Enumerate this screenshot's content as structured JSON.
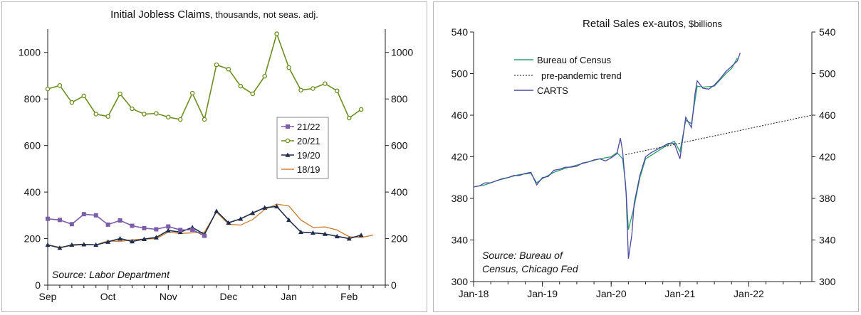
{
  "chart_data": [
    {
      "type": "line",
      "title": "Initial Jobless Claims",
      "subtitle": ", thousands, not seas. adj.",
      "source": "Source: Labor Department",
      "x_tick_labels": [
        "Sep",
        "Oct",
        "Nov",
        "Dec",
        "Jan",
        "Feb"
      ],
      "x_week_range": [
        0,
        28
      ],
      "x_tick_weeks": [
        0,
        5,
        10,
        15,
        20,
        25
      ],
      "ylim": [
        0,
        1100
      ],
      "y_ticks": [
        0,
        200,
        400,
        600,
        800,
        1000
      ],
      "legend_position": "right",
      "series": [
        {
          "name": "21/22",
          "color": "#7b5ea7",
          "marker": "square",
          "values": [
            285,
            280,
            262,
            305,
            300,
            260,
            278,
            255,
            245,
            240,
            252,
            237,
            238,
            212
          ]
        },
        {
          "name": "20/21",
          "color": "#6b8e23",
          "marker": "circle",
          "values": [
            843,
            858,
            785,
            813,
            735,
            725,
            822,
            758,
            735,
            738,
            722,
            712,
            825,
            712,
            947,
            928,
            855,
            822,
            898,
            1080,
            935,
            838,
            845,
            866,
            835,
            718,
            755
          ]
        },
        {
          "name": "19/20",
          "color": "#1f2d4a",
          "marker": "triangle",
          "values": [
            173,
            160,
            173,
            175,
            173,
            186,
            200,
            188,
            198,
            205,
            235,
            228,
            248,
            218,
            318,
            268,
            285,
            310,
            333,
            338,
            280,
            228,
            225,
            220,
            210,
            200,
            215
          ]
        },
        {
          "name": "18/19",
          "color": "#c88340",
          "marker": "none",
          "values": [
            173,
            163,
            170,
            175,
            173,
            190,
            188,
            195,
            198,
            200,
            228,
            222,
            225,
            228,
            314,
            262,
            258,
            282,
            325,
            348,
            340,
            280,
            248,
            250,
            237,
            208,
            205,
            215
          ]
        }
      ]
    },
    {
      "type": "line",
      "title": "Retail Sales ex-autos",
      "subtitle": ", $billions",
      "source_lines": [
        "Source: Bureau of",
        "Census, Chicago Fed"
      ],
      "x_tick_labels": [
        "Jan-18",
        "Jan-19",
        "Jan-20",
        "Jan-21",
        "Jan-22"
      ],
      "x_month_range": [
        0,
        59
      ],
      "x_tick_months": [
        0,
        12,
        24,
        36,
        48
      ],
      "ylim": [
        300,
        540
      ],
      "y_ticks": [
        300,
        340,
        380,
        420,
        460,
        500,
        540
      ],
      "legend_position": "top-left",
      "series": [
        {
          "name": "Bureau of Census",
          "color": "#2e9e6b",
          "style": "solid",
          "points": [
            [
              0,
              391
            ],
            [
              2,
              393
            ],
            [
              4,
              397
            ],
            [
              6,
              400
            ],
            [
              8,
              403
            ],
            [
              10,
              404
            ],
            [
              11,
              395
            ],
            [
              12,
              399
            ],
            [
              14,
              405
            ],
            [
              16,
              409
            ],
            [
              18,
              412
            ],
            [
              20,
              415
            ],
            [
              22,
              418
            ],
            [
              24,
              420
            ],
            [
              25,
              424
            ],
            [
              26,
              418
            ],
            [
              26.5,
              395
            ],
            [
              27,
              350
            ],
            [
              28,
              372
            ],
            [
              29,
              400
            ],
            [
              30,
              418
            ],
            [
              32,
              425
            ],
            [
              34,
              432
            ],
            [
              35,
              435
            ],
            [
              36,
              425
            ],
            [
              37,
              455
            ],
            [
              38,
              452
            ],
            [
              39,
              488
            ],
            [
              40,
              487
            ],
            [
              42,
              488
            ],
            [
              44,
              500
            ],
            [
              45,
              505
            ],
            [
              46,
              515
            ]
          ]
        },
        {
          "name": "pre-pandemic trend",
          "color": "#111111",
          "style": "dotted",
          "points": [
            [
              26.5,
              422
            ],
            [
              59,
              460
            ]
          ]
        },
        {
          "name": "CARTS",
          "color": "#4a4aa0",
          "style": "solid",
          "points": [
            [
              0,
              391
            ],
            [
              1,
              392
            ],
            [
              2,
              395
            ],
            [
              3,
              395
            ],
            [
              4,
              397
            ],
            [
              5,
              399
            ],
            [
              6,
              400
            ],
            [
              7,
              402
            ],
            [
              8,
              402
            ],
            [
              9,
              404
            ],
            [
              10,
              405
            ],
            [
              11,
              393
            ],
            [
              12,
              400
            ],
            [
              13,
              401
            ],
            [
              14,
              407
            ],
            [
              15,
              408
            ],
            [
              16,
              410
            ],
            [
              17,
              410
            ],
            [
              18,
              411
            ],
            [
              19,
              414
            ],
            [
              20,
              415
            ],
            [
              21,
              417
            ],
            [
              22,
              418
            ],
            [
              23,
              416
            ],
            [
              24,
              419
            ],
            [
              25,
              423
            ],
            [
              25.6,
              438
            ],
            [
              26,
              425
            ],
            [
              26.6,
              385
            ],
            [
              27,
              322
            ],
            [
              27.6,
              345
            ],
            [
              28,
              375
            ],
            [
              29,
              402
            ],
            [
              30,
              420
            ],
            [
              31,
              424
            ],
            [
              32,
              427
            ],
            [
              33,
              430
            ],
            [
              34,
              433
            ],
            [
              35,
              433
            ],
            [
              36,
              418
            ],
            [
              37,
              458
            ],
            [
              38,
              448
            ],
            [
              38.6,
              480
            ],
            [
              39,
              493
            ],
            [
              40,
              486
            ],
            [
              41,
              485
            ],
            [
              42,
              489
            ],
            [
              43,
              495
            ],
            [
              44,
              502
            ],
            [
              45,
              507
            ],
            [
              46,
              512
            ],
            [
              46.5,
              520
            ]
          ]
        }
      ]
    }
  ]
}
